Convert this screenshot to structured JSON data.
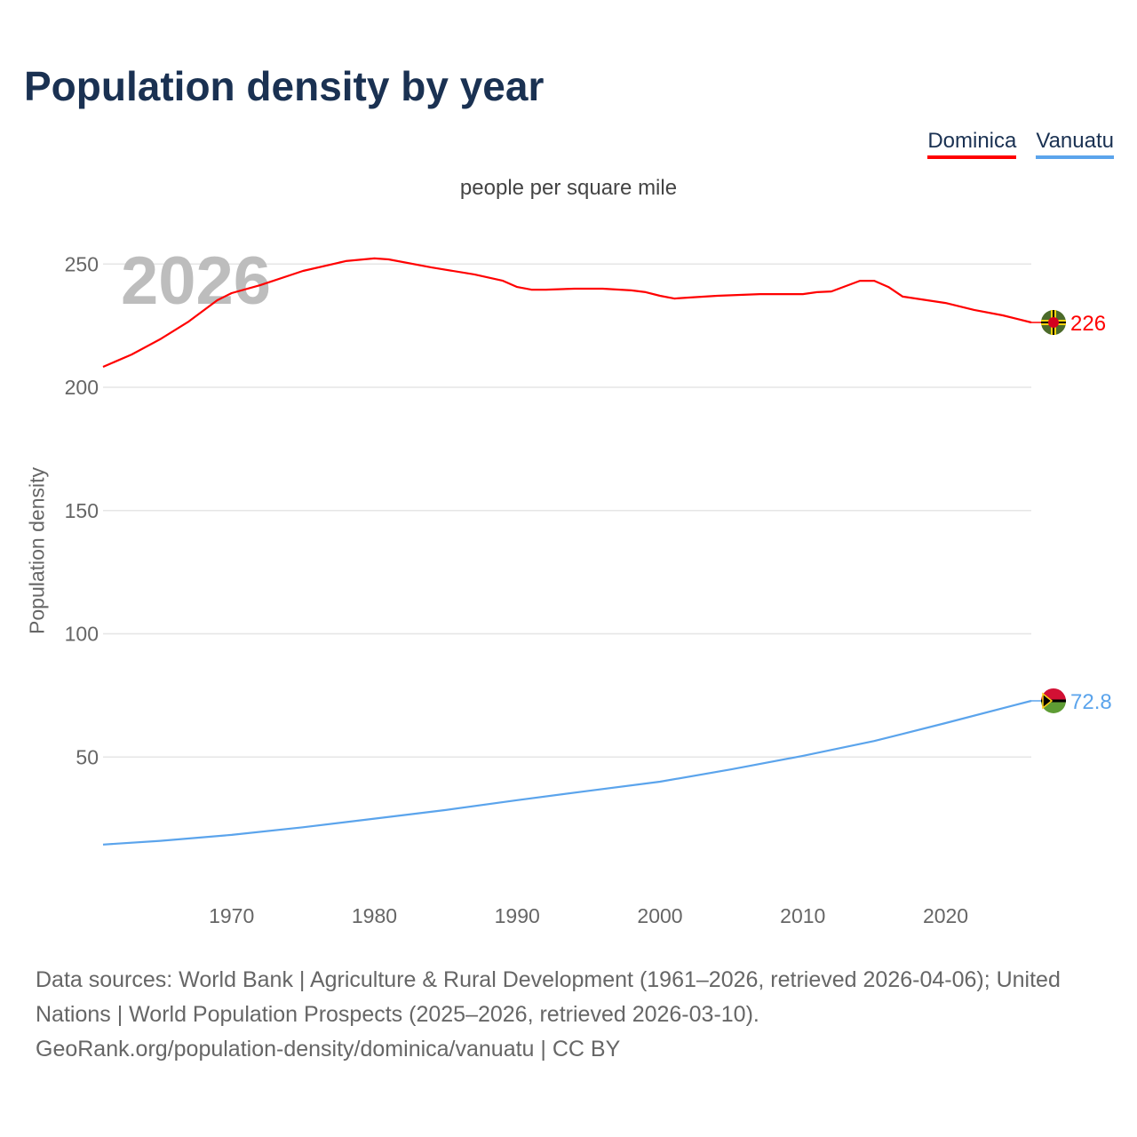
{
  "title": "Population density by year",
  "unit_label": "people per square mile",
  "footer": {
    "line1": "Data sources: World Bank | Agriculture & Rural Development (1961–2026, retrieved 2026-04-06); United Nations | World Population Prospects (2025–2026, retrieved 2026-03-10).",
    "line2": "GeoRank.org/population-density/dominica/vanuatu | CC BY"
  },
  "chart_data": {
    "type": "line",
    "title": "Population density by year",
    "xlabel": "",
    "ylabel": "Population density",
    "watermark_year": "2026",
    "xlim": [
      1961,
      2026
    ],
    "ylim": [
      0,
      270
    ],
    "xticks": [
      1970,
      1980,
      1990,
      2000,
      2010,
      2020
    ],
    "yticks": [
      50,
      100,
      150,
      200,
      250
    ],
    "grid": true,
    "legend_position": "top-right",
    "series": [
      {
        "name": "Dominica",
        "color": "#ff0000",
        "end_label": "226",
        "x": [
          1961,
          1963,
          1965,
          1967,
          1969,
          1970,
          1972,
          1975,
          1978,
          1980,
          1981,
          1984,
          1987,
          1989,
          1990,
          1991,
          1992,
          1994,
          1996,
          1998,
          1999,
          2000,
          2001,
          2002,
          2004,
          2007,
          2010,
          2011,
          2012,
          2014,
          2015,
          2016,
          2017,
          2020,
          2022,
          2024,
          2026
        ],
        "y": [
          208.3,
          213.3,
          219.5,
          226.7,
          235.3,
          238.2,
          241.4,
          247.2,
          251.2,
          252.3,
          251.9,
          248.6,
          245.8,
          243.2,
          240.7,
          239.6,
          239.6,
          240,
          240,
          239.3,
          238.6,
          237.1,
          236,
          236.4,
          237.1,
          237.8,
          237.8,
          238.6,
          238.9,
          243.2,
          243.2,
          240.7,
          236.8,
          234.2,
          231.4,
          229.2,
          226.3
        ]
      },
      {
        "name": "Vanuatu",
        "color": "#5ba4ec",
        "end_label": "72.8",
        "x": [
          1961,
          1965,
          1970,
          1975,
          1980,
          1985,
          1990,
          1995,
          2000,
          2005,
          2010,
          2015,
          2020,
          2024,
          2026
        ],
        "y": [
          14.5,
          16.0,
          18.4,
          21.5,
          25.0,
          28.5,
          32.5,
          36.3,
          40.0,
          45.0,
          50.5,
          56.5,
          63.8,
          69.8,
          72.8
        ]
      }
    ]
  }
}
